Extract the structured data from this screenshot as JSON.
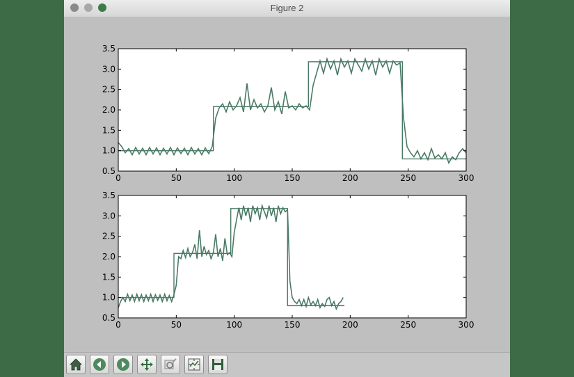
{
  "window": {
    "title": "Figure 2"
  },
  "toolbar": {
    "buttons": [
      {
        "name": "home-button",
        "icon": "home-icon"
      },
      {
        "name": "back-button",
        "icon": "back-arrow-icon"
      },
      {
        "name": "forward-button",
        "icon": "forward-arrow-icon"
      },
      {
        "name": "pan-button",
        "icon": "move-arrows-icon"
      },
      {
        "name": "zoom-button",
        "icon": "zoom-rect-icon"
      },
      {
        "name": "subplots-button",
        "icon": "configure-subplots-icon"
      },
      {
        "name": "save-button",
        "icon": "floppy-disk-icon"
      }
    ]
  },
  "colors": {
    "line": "#4a7a66",
    "background": "#bfbfbf",
    "axes": "#ffffff"
  },
  "chart_data": [
    {
      "type": "line",
      "xlim": [
        0,
        300
      ],
      "ylim": [
        0.5,
        3.5
      ],
      "xticks": [
        "0",
        "50",
        "100",
        "150",
        "200",
        "250",
        "300"
      ],
      "yticks": [
        "0.5",
        "1.0",
        "1.5",
        "2.0",
        "2.5",
        "3.0",
        "3.5"
      ],
      "series": [
        {
          "style": "step",
          "x": [
            0,
            82,
            82,
            164,
            164,
            245,
            245,
            300
          ],
          "y": [
            1.0,
            1.0,
            2.08,
            2.08,
            3.18,
            3.18,
            0.8,
            0.8
          ]
        },
        {
          "style": "noisy",
          "x": [
            0,
            3,
            6,
            9,
            12,
            15,
            18,
            21,
            24,
            27,
            30,
            33,
            36,
            39,
            42,
            45,
            48,
            51,
            54,
            57,
            60,
            63,
            66,
            69,
            72,
            75,
            78,
            81,
            84,
            87,
            90,
            93,
            96,
            99,
            102,
            105,
            108,
            111,
            114,
            117,
            120,
            123,
            126,
            129,
            132,
            135,
            138,
            141,
            144,
            147,
            150,
            153,
            156,
            159,
            162,
            165,
            168,
            171,
            174,
            177,
            180,
            183,
            186,
            189,
            192,
            195,
            198,
            201,
            204,
            207,
            210,
            213,
            216,
            219,
            222,
            225,
            228,
            231,
            234,
            237,
            240,
            243,
            246,
            249,
            252,
            255,
            258,
            261,
            264,
            267,
            270,
            273,
            276,
            279,
            282,
            285,
            288,
            291,
            294,
            297,
            300
          ],
          "y": [
            1.2,
            1.1,
            0.95,
            1.05,
            0.9,
            1.08,
            0.92,
            1.06,
            0.9,
            1.08,
            0.92,
            1.07,
            0.9,
            1.06,
            0.92,
            1.08,
            0.9,
            1.07,
            0.93,
            1.06,
            0.9,
            1.08,
            0.92,
            1.05,
            0.9,
            1.07,
            0.93,
            1.1,
            1.8,
            2.05,
            2.15,
            1.95,
            2.2,
            2.0,
            2.1,
            2.3,
            1.95,
            2.65,
            2.0,
            2.25,
            2.05,
            2.15,
            1.95,
            2.1,
            2.55,
            2.0,
            2.2,
            1.9,
            2.45,
            2.05,
            2.1,
            2.0,
            2.15,
            2.05,
            2.1,
            2.0,
            2.6,
            2.9,
            3.2,
            2.9,
            3.25,
            3.0,
            3.2,
            2.85,
            3.25,
            3.05,
            3.2,
            2.9,
            3.25,
            3.1,
            2.95,
            3.25,
            3.0,
            3.2,
            2.85,
            3.25,
            3.05,
            3.2,
            2.9,
            3.2,
            3.1,
            3.15,
            1.8,
            1.1,
            0.95,
            0.85,
            1.0,
            0.8,
            0.95,
            0.78,
            1.05,
            0.82,
            0.9,
            0.8,
            0.95,
            0.7,
            0.85,
            0.78,
            0.95,
            1.05,
            0.95
          ]
        }
      ]
    },
    {
      "type": "line",
      "xlim": [
        0,
        300
      ],
      "ylim": [
        0.5,
        3.5
      ],
      "xticks": [
        "0",
        "50",
        "100",
        "150",
        "200",
        "250",
        "300"
      ],
      "yticks": [
        "0.5",
        "1.0",
        "1.5",
        "2.0",
        "2.5",
        "3.0",
        "3.5"
      ],
      "series": [
        {
          "style": "step",
          "x": [
            0,
            48,
            48,
            97,
            97,
            146,
            146,
            195
          ],
          "y": [
            1.0,
            1.0,
            2.08,
            2.08,
            3.18,
            3.18,
            0.8,
            0.8
          ]
        },
        {
          "style": "noisy",
          "x": [
            0,
            2,
            4,
            6,
            8,
            10,
            12,
            14,
            16,
            18,
            20,
            22,
            24,
            26,
            28,
            30,
            32,
            34,
            36,
            38,
            40,
            42,
            44,
            46,
            48,
            50,
            52,
            54,
            56,
            58,
            60,
            62,
            64,
            66,
            68,
            70,
            72,
            74,
            76,
            78,
            80,
            82,
            84,
            86,
            88,
            90,
            92,
            94,
            96,
            98,
            100,
            102,
            104,
            106,
            108,
            110,
            112,
            114,
            116,
            118,
            120,
            122,
            124,
            126,
            128,
            130,
            132,
            134,
            136,
            138,
            140,
            142,
            144,
            146,
            148,
            150,
            152,
            154,
            156,
            158,
            160,
            162,
            164,
            166,
            168,
            170,
            172,
            174,
            176,
            178,
            180,
            182,
            184,
            186,
            188,
            190,
            192,
            194
          ],
          "y": [
            0.75,
            0.9,
            1.0,
            0.9,
            1.08,
            0.92,
            1.06,
            0.9,
            1.08,
            0.92,
            1.07,
            0.9,
            1.06,
            0.92,
            1.08,
            0.9,
            1.07,
            0.93,
            1.06,
            0.9,
            1.08,
            0.92,
            1.05,
            0.9,
            1.07,
            1.3,
            2.0,
            1.95,
            2.15,
            1.98,
            2.2,
            2.0,
            2.1,
            2.3,
            1.95,
            2.65,
            2.0,
            2.25,
            2.05,
            2.15,
            1.95,
            2.1,
            2.55,
            2.0,
            2.2,
            1.9,
            2.45,
            2.05,
            2.1,
            2.0,
            2.6,
            2.9,
            3.2,
            2.9,
            3.25,
            3.0,
            3.2,
            2.85,
            3.25,
            3.05,
            3.2,
            2.9,
            3.25,
            3.1,
            2.95,
            3.25,
            3.0,
            3.2,
            2.85,
            3.25,
            3.05,
            3.2,
            3.1,
            3.15,
            1.4,
            1.0,
            0.9,
            0.85,
            0.95,
            0.8,
            0.95,
            0.78,
            1.0,
            0.82,
            0.9,
            0.8,
            0.95,
            0.75,
            0.85,
            0.78,
            0.95,
            1.0,
            0.8,
            0.9,
            0.72,
            0.85,
            0.9,
            1.0
          ]
        }
      ]
    }
  ]
}
